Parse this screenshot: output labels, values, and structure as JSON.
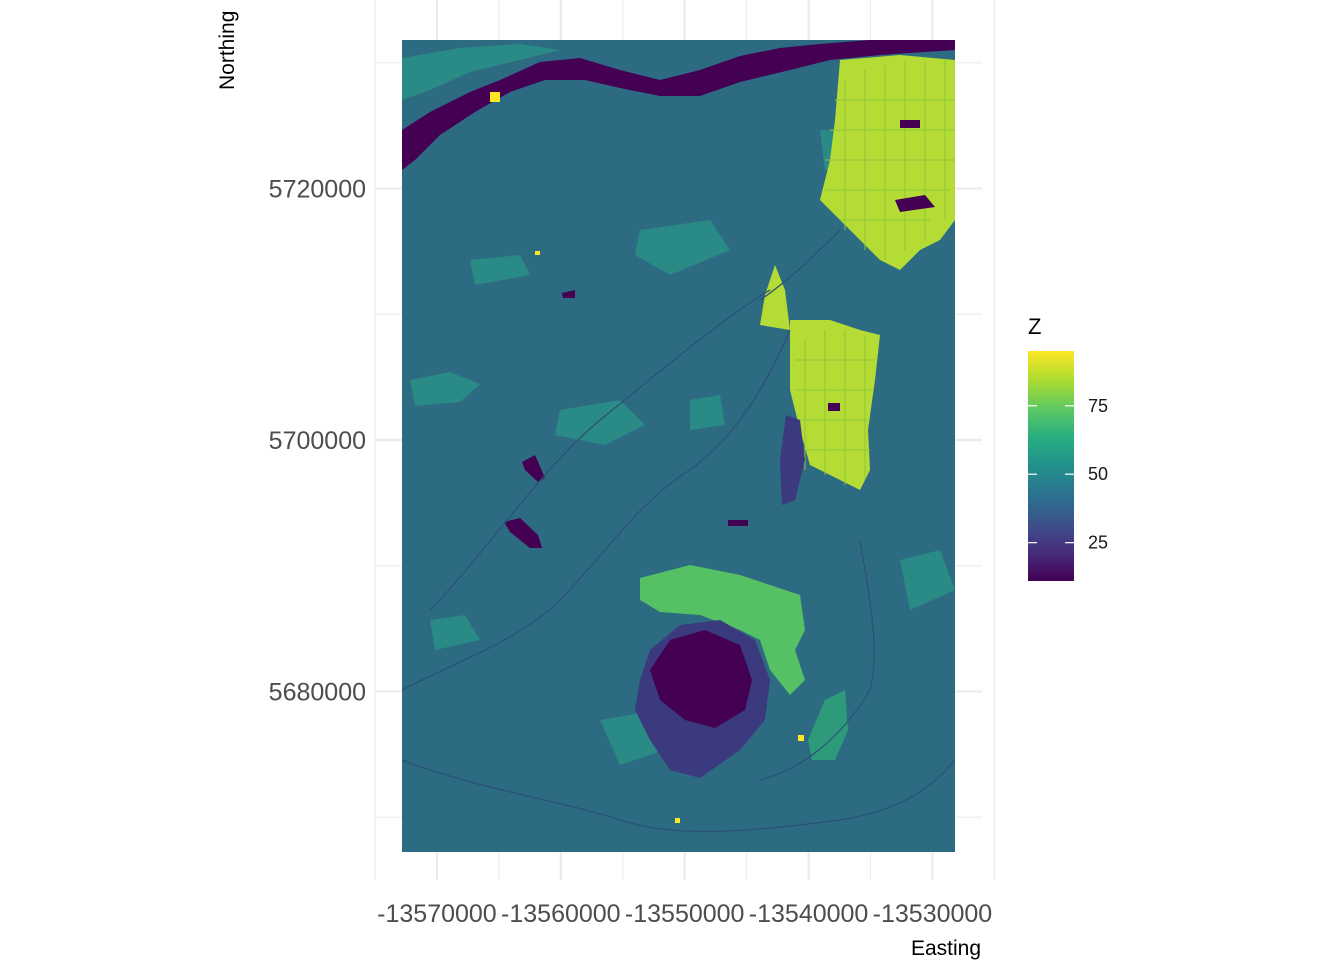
{
  "chart_data": {
    "type": "heatmap",
    "title": "",
    "xlabel": "Easting",
    "ylabel": "Northing",
    "x_ticks": [
      -13570000,
      -13560000,
      -13550000,
      -13540000,
      -13530000
    ],
    "x_tick_labels": [
      "-13570000",
      "-13560000",
      "-13550000",
      "-13540000",
      "-13530000"
    ],
    "y_ticks": [
      5680000,
      5700000,
      5720000
    ],
    "y_tick_labels": [
      "5680000",
      "5700000",
      "5720000"
    ],
    "xlim": [
      -13575000,
      -13526000
    ],
    "ylim": [
      5665000,
      5735000
    ],
    "raster_extent": {
      "xmin": -13574500,
      "xmax": -13527700,
      "ymin": 5668400,
      "ymax": 5737200
    },
    "grid": true,
    "legend": {
      "title": "Z",
      "position": "right",
      "breaks": [
        25,
        50,
        75
      ],
      "labels": [
        "25",
        "50",
        "75"
      ],
      "range": [
        11,
        95
      ]
    },
    "colorscale": "viridis",
    "colors": {
      "background_class": "#2d6b82",
      "water": "#440154",
      "low": "#3b3a7e",
      "mid_green": "#2d9b79",
      "green": "#55c064",
      "urban": "#b4dc34",
      "bright": "#fde725",
      "grid": "#ebebeb"
    }
  }
}
